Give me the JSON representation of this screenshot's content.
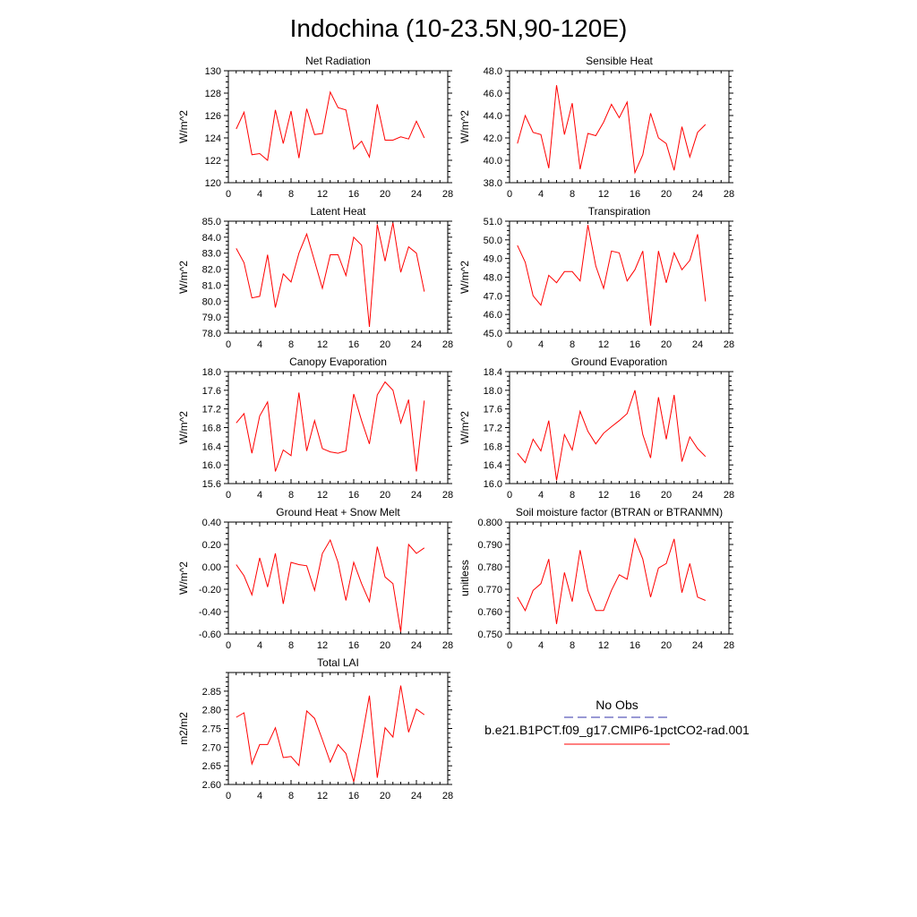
{
  "figure": {
    "title": "Indochina (10-23.5N,90-120E)",
    "legend": {
      "obs_label": "No Obs",
      "obs_color": "#3333aa",
      "model_label": "b.e21.B1PCT.f09_g17.CMIP6-1pctCO2-rad.001",
      "model_color": "#ff0000"
    }
  },
  "chart_data": [
    {
      "type": "line",
      "title": "Net Radiation",
      "ylabel": "W/m^2",
      "xlim": [
        0,
        28
      ],
      "ylim": [
        120,
        130
      ],
      "xticks": [
        0,
        4,
        8,
        12,
        16,
        20,
        24,
        28
      ],
      "yticks": [
        120,
        122,
        124,
        126,
        128,
        130
      ],
      "ytick_labels": [
        "120",
        "122",
        "124",
        "126",
        "128",
        "130"
      ],
      "series": [
        {
          "color": "#ff0000",
          "x": [
            1,
            2,
            3,
            4,
            5,
            6,
            7,
            8,
            9,
            10,
            11,
            12,
            13,
            14,
            15,
            16,
            17,
            18,
            19,
            20,
            21,
            22,
            23,
            24,
            25
          ],
          "values": [
            124.8,
            126.3,
            122.5,
            122.6,
            122.0,
            126.5,
            123.5,
            126.4,
            122.2,
            126.6,
            124.3,
            124.4,
            128.1,
            126.7,
            126.5,
            123.0,
            123.7,
            122.3,
            127.0,
            123.8,
            123.8,
            124.1,
            123.9,
            125.5,
            124.0
          ]
        }
      ]
    },
    {
      "type": "line",
      "title": "Sensible Heat",
      "ylabel": "W/m^2",
      "xlim": [
        0,
        28
      ],
      "ylim": [
        38,
        48
      ],
      "xticks": [
        0,
        4,
        8,
        12,
        16,
        20,
        24,
        28
      ],
      "yticks": [
        38,
        40,
        42,
        44,
        46,
        48
      ],
      "ytick_labels": [
        "38.0",
        "40.0",
        "42.0",
        "44.0",
        "46.0",
        "48.0"
      ],
      "series": [
        {
          "color": "#ff0000",
          "x": [
            1,
            2,
            3,
            4,
            5,
            6,
            7,
            8,
            9,
            10,
            11,
            12,
            13,
            14,
            15,
            16,
            17,
            18,
            19,
            20,
            21,
            22,
            23,
            24,
            25
          ],
          "values": [
            41.5,
            44.0,
            42.5,
            42.3,
            39.3,
            46.7,
            42.3,
            45.1,
            39.2,
            42.4,
            42.2,
            43.4,
            45.0,
            43.8,
            45.2,
            38.9,
            40.5,
            44.2,
            42.0,
            41.5,
            39.1,
            43.0,
            40.3,
            42.5,
            43.2
          ]
        }
      ]
    },
    {
      "type": "line",
      "title": "Latent Heat",
      "ylabel": "W/m^2",
      "xlim": [
        0,
        28
      ],
      "ylim": [
        78,
        85
      ],
      "xticks": [
        0,
        4,
        8,
        12,
        16,
        20,
        24,
        28
      ],
      "yticks": [
        78,
        79,
        80,
        81,
        82,
        83,
        84,
        85
      ],
      "ytick_labels": [
        "78.0",
        "79.0",
        "80.0",
        "81.0",
        "82.0",
        "83.0",
        "84.0",
        "85.0"
      ],
      "series": [
        {
          "color": "#ff0000",
          "x": [
            1,
            2,
            3,
            4,
            5,
            6,
            7,
            8,
            9,
            10,
            11,
            12,
            13,
            14,
            15,
            16,
            17,
            18,
            19,
            20,
            21,
            22,
            23,
            24,
            25
          ],
          "values": [
            83.3,
            82.4,
            80.2,
            80.3,
            82.9,
            79.6,
            81.7,
            81.2,
            83.0,
            84.2,
            82.5,
            80.8,
            82.9,
            82.9,
            81.6,
            84.0,
            83.5,
            78.4,
            84.8,
            82.5,
            84.9,
            81.8,
            83.4,
            83.0,
            80.6
          ]
        }
      ]
    },
    {
      "type": "line",
      "title": "Transpiration",
      "ylabel": "W/m^2",
      "xlim": [
        0,
        28
      ],
      "ylim": [
        45,
        51
      ],
      "xticks": [
        0,
        4,
        8,
        12,
        16,
        20,
        24,
        28
      ],
      "yticks": [
        45,
        46,
        47,
        48,
        49,
        50,
        51
      ],
      "ytick_labels": [
        "45.0",
        "46.0",
        "47.0",
        "48.0",
        "49.0",
        "50.0",
        "51.0"
      ],
      "series": [
        {
          "color": "#ff0000",
          "x": [
            1,
            2,
            3,
            4,
            5,
            6,
            7,
            8,
            9,
            10,
            11,
            12,
            13,
            14,
            15,
            16,
            17,
            18,
            19,
            20,
            21,
            22,
            23,
            24,
            25
          ],
          "values": [
            49.7,
            48.8,
            47.0,
            46.5,
            48.1,
            47.7,
            48.3,
            48.3,
            47.8,
            50.8,
            48.6,
            47.4,
            49.4,
            49.3,
            47.8,
            48.4,
            49.4,
            45.4,
            49.4,
            47.7,
            49.3,
            48.4,
            48.9,
            50.3,
            46.7
          ]
        }
      ]
    },
    {
      "type": "line",
      "title": "Canopy Evaporation",
      "ylabel": "W/m^2",
      "xlim": [
        0,
        28
      ],
      "ylim": [
        15.6,
        18.0
      ],
      "xticks": [
        0,
        4,
        8,
        12,
        16,
        20,
        24,
        28
      ],
      "yticks": [
        15.6,
        16.0,
        16.4,
        16.8,
        17.2,
        17.6,
        18.0
      ],
      "ytick_labels": [
        "15.6",
        "16.0",
        "16.4",
        "16.8",
        "17.2",
        "17.6",
        "18.0"
      ],
      "series": [
        {
          "color": "#ff0000",
          "x": [
            1,
            2,
            3,
            4,
            5,
            6,
            7,
            8,
            9,
            10,
            11,
            12,
            13,
            14,
            15,
            16,
            17,
            18,
            19,
            20,
            21,
            22,
            23,
            24,
            25
          ],
          "values": [
            16.9,
            17.1,
            16.25,
            17.05,
            17.35,
            15.86,
            16.32,
            16.2,
            17.55,
            16.3,
            16.95,
            16.35,
            16.28,
            16.25,
            16.3,
            17.52,
            16.95,
            16.45,
            17.5,
            17.78,
            17.6,
            16.9,
            17.4,
            15.86,
            17.38
          ]
        }
      ]
    },
    {
      "type": "line",
      "title": "Ground Evaporation",
      "ylabel": "W/m^2",
      "xlim": [
        0,
        28
      ],
      "ylim": [
        16.0,
        18.4
      ],
      "xticks": [
        0,
        4,
        8,
        12,
        16,
        20,
        24,
        28
      ],
      "yticks": [
        16.0,
        16.4,
        16.8,
        17.2,
        17.6,
        18.0,
        18.4
      ],
      "ytick_labels": [
        "16.0",
        "16.4",
        "16.8",
        "17.2",
        "17.6",
        "18.0",
        "18.4"
      ],
      "series": [
        {
          "color": "#ff0000",
          "x": [
            1,
            2,
            3,
            4,
            5,
            6,
            7,
            8,
            9,
            10,
            11,
            12,
            13,
            14,
            15,
            16,
            17,
            18,
            19,
            20,
            21,
            22,
            23,
            24,
            25
          ],
          "values": [
            16.65,
            16.45,
            16.95,
            16.7,
            17.35,
            16.07,
            17.05,
            16.72,
            17.55,
            17.12,
            16.85,
            17.08,
            17.22,
            17.35,
            17.5,
            18.0,
            17.05,
            16.55,
            17.85,
            16.95,
            17.9,
            16.47,
            17.0,
            16.75,
            16.58
          ]
        }
      ]
    },
    {
      "type": "line",
      "title": "Ground Heat + Snow Melt",
      "ylabel": "W/m^2",
      "xlim": [
        0,
        28
      ],
      "ylim": [
        -0.6,
        0.4
      ],
      "xticks": [
        0,
        4,
        8,
        12,
        16,
        20,
        24,
        28
      ],
      "yticks": [
        -0.6,
        -0.4,
        -0.2,
        0.0,
        0.2,
        0.4
      ],
      "ytick_labels": [
        "-0.60",
        "-0.40",
        "-0.20",
        "0.00",
        "0.20",
        "0.40"
      ],
      "series": [
        {
          "color": "#ff0000",
          "x": [
            1,
            2,
            3,
            4,
            5,
            6,
            7,
            8,
            9,
            10,
            11,
            12,
            13,
            14,
            15,
            16,
            17,
            18,
            19,
            20,
            21,
            22,
            23,
            24,
            25
          ],
          "values": [
            0.02,
            -0.08,
            -0.25,
            0.08,
            -0.18,
            0.12,
            -0.33,
            0.04,
            0.02,
            0.01,
            -0.21,
            0.12,
            0.24,
            0.04,
            -0.3,
            0.04,
            -0.15,
            -0.31,
            0.18,
            -0.09,
            -0.15,
            -0.58,
            0.2,
            0.12,
            0.17
          ]
        }
      ]
    },
    {
      "type": "line",
      "title": "Soil moisture factor (BTRAN or BTRANMN)",
      "ylabel": "unitless",
      "xlim": [
        0,
        28
      ],
      "ylim": [
        0.75,
        0.8
      ],
      "xticks": [
        0,
        4,
        8,
        12,
        16,
        20,
        24,
        28
      ],
      "yticks": [
        0.75,
        0.76,
        0.77,
        0.78,
        0.79,
        0.8
      ],
      "ytick_labels": [
        "0.750",
        "0.760",
        "0.770",
        "0.780",
        "0.790",
        "0.800"
      ],
      "series": [
        {
          "color": "#ff0000",
          "x": [
            1,
            2,
            3,
            4,
            5,
            6,
            7,
            8,
            9,
            10,
            11,
            12,
            13,
            14,
            15,
            16,
            17,
            18,
            19,
            20,
            21,
            22,
            23,
            24,
            25
          ],
          "values": [
            0.7665,
            0.7605,
            0.7695,
            0.7725,
            0.7835,
            0.7545,
            0.7775,
            0.7645,
            0.7875,
            0.7695,
            0.7605,
            0.7605,
            0.7695,
            0.7765,
            0.7745,
            0.7925,
            0.7835,
            0.7665,
            0.7795,
            0.7815,
            0.7925,
            0.7685,
            0.7815,
            0.7665,
            0.765
          ]
        }
      ]
    },
    {
      "type": "line",
      "title": "Total LAI",
      "ylabel": "m2/m2",
      "xlim": [
        0,
        28
      ],
      "ylim": [
        2.6,
        2.9
      ],
      "xticks": [
        0,
        4,
        8,
        12,
        16,
        20,
        24,
        28
      ],
      "yticks": [
        2.6,
        2.65,
        2.7,
        2.75,
        2.8,
        2.85
      ],
      "ytick_labels": [
        "2.60",
        "2.65",
        "2.70",
        "2.75",
        "2.80",
        "2.85"
      ],
      "series": [
        {
          "color": "#ff0000",
          "x": [
            1,
            2,
            3,
            4,
            5,
            6,
            7,
            8,
            9,
            10,
            11,
            12,
            13,
            14,
            15,
            16,
            17,
            18,
            19,
            20,
            21,
            22,
            23,
            24,
            25
          ],
          "values": [
            2.78,
            2.792,
            2.655,
            2.707,
            2.707,
            2.752,
            2.672,
            2.675,
            2.651,
            2.797,
            2.777,
            2.72,
            2.66,
            2.707,
            2.683,
            2.607,
            2.72,
            2.838,
            2.618,
            2.752,
            2.727,
            2.865,
            2.74,
            2.802,
            2.787
          ]
        }
      ]
    }
  ]
}
